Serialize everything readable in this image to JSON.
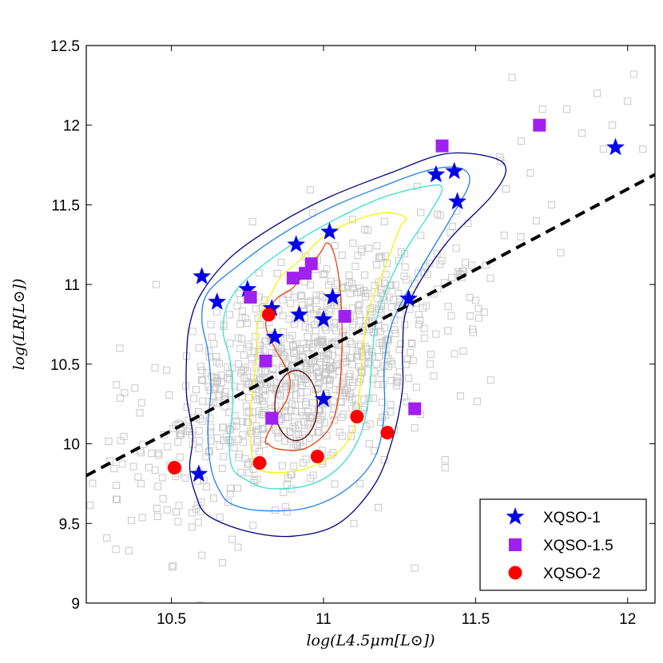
{
  "chart_data": {
    "type": "scatter",
    "title": "",
    "xlabel": "log(L4.5μm[L⊙])",
    "ylabel": "log(LR[L⊙])",
    "xlim": [
      10.22,
      12.09
    ],
    "ylim": [
      9.0,
      12.5
    ],
    "x_ticks": [
      10.5,
      11,
      11.5,
      12
    ],
    "x_tick_labels": [
      "10.5",
      "11",
      "11.5",
      "12"
    ],
    "y_ticks": [
      9,
      9.5,
      10,
      10.5,
      11,
      11.5,
      12,
      12.5
    ],
    "y_tick_labels": [
      "9",
      "9.5",
      "10",
      "10.5",
      "11",
      "11.5",
      "12",
      "12.5"
    ],
    "grid": false,
    "legend_position": "bottom-right",
    "background_sample": {
      "name": "comparison sample",
      "marker": "open-square",
      "color": "#c8c8c8",
      "count": 900,
      "center": [
        10.92,
        10.45
      ],
      "spread": [
        0.2,
        0.42
      ],
      "outliers_x": [
        10.36,
        10.38,
        10.55,
        11.6,
        11.62,
        11.65,
        11.68,
        11.72,
        11.75,
        11.8,
        11.85,
        11.9,
        11.92,
        11.95,
        12.0,
        12.02,
        12.05,
        11.78,
        11.7,
        11.58,
        11.55,
        11.5,
        11.45,
        11.4,
        11.35,
        11.3,
        11.25,
        11.2,
        11.15,
        11.1,
        11.3,
        11.4,
        11.22,
        11.18,
        11.12,
        10.33,
        10.45,
        10.4,
        10.6,
        10.7
      ],
      "outliers_y": [
        9.33,
        10.35,
        10.55,
        11.6,
        12.3,
        11.9,
        11.7,
        12.1,
        11.5,
        12.1,
        11.95,
        12.2,
        11.85,
        12.0,
        12.15,
        12.32,
        11.85,
        11.2,
        11.4,
        11.8,
        10.4,
        10.9,
        10.3,
        9.85,
        10.5,
        10.1,
        10.45,
        9.9,
        10.0,
        9.5,
        9.22,
        9.9,
        10.2,
        9.6,
        9.75,
        10.6,
        11.0,
        9.75,
        9.3,
        9.4
      ]
    },
    "contours": [
      {
        "color": "#5c0000",
        "level": 1,
        "center": [
          10.91,
          10.24
        ],
        "rx": 0.07,
        "ry": 0.22,
        "tilt": 0.0
      },
      {
        "color": "#e8400c",
        "level": 2,
        "x": [
          10.82,
          10.88,
          10.95,
          11.02,
          11.05,
          11.06,
          11.06,
          11.05,
          11.03,
          11.01,
          10.99,
          10.95,
          10.9,
          10.84,
          10.81,
          10.84,
          10.87,
          10.89,
          10.88,
          10.84,
          10.81
        ],
        "y": [
          10.0,
          9.96,
          9.98,
          10.1,
          10.3,
          10.55,
          10.8,
          11.05,
          11.22,
          11.26,
          11.2,
          11.1,
          10.98,
          10.9,
          10.75,
          10.6,
          10.5,
          10.4,
          10.28,
          10.15,
          10.0
        ]
      },
      {
        "color": "#f5f500",
        "level": 3,
        "x": [
          10.78,
          10.85,
          10.95,
          11.05,
          11.1,
          11.12,
          11.13,
          11.15,
          11.2,
          11.25,
          11.27,
          11.2,
          11.1,
          11.0,
          10.92,
          10.86,
          10.83,
          10.8,
          10.78,
          10.78,
          10.77,
          10.76,
          10.76,
          10.78
        ],
        "y": [
          9.85,
          9.82,
          9.85,
          9.95,
          10.1,
          10.35,
          10.6,
          10.85,
          11.1,
          11.35,
          11.42,
          11.45,
          11.4,
          11.3,
          11.15,
          11.05,
          10.95,
          10.85,
          10.72,
          10.55,
          10.38,
          10.2,
          10.0,
          9.85
        ]
      },
      {
        "color": "#38e0d0",
        "level": 4,
        "x": [
          10.74,
          10.82,
          10.95,
          11.05,
          11.12,
          11.15,
          11.16,
          11.18,
          11.25,
          11.35,
          11.39,
          11.35,
          11.2,
          11.05,
          10.92,
          10.8,
          10.72,
          10.68,
          10.67,
          10.69,
          10.7,
          10.7,
          10.69,
          10.7,
          10.74
        ],
        "y": [
          9.78,
          9.72,
          9.74,
          9.85,
          10.05,
          10.3,
          10.55,
          10.82,
          11.15,
          11.45,
          11.6,
          11.62,
          11.55,
          11.42,
          11.28,
          11.12,
          10.98,
          10.85,
          10.7,
          10.55,
          10.4,
          10.2,
          10.0,
          9.85,
          9.78
        ]
      },
      {
        "color": "#2080e8",
        "level": 5,
        "x": [
          10.7,
          10.8,
          10.95,
          11.08,
          11.17,
          11.2,
          11.2,
          11.23,
          11.32,
          11.42,
          11.48,
          11.45,
          11.35,
          11.2,
          11.02,
          10.85,
          10.72,
          10.62,
          10.6,
          10.62,
          10.63,
          10.62,
          10.63,
          10.66,
          10.7
        ],
        "y": [
          9.62,
          9.58,
          9.6,
          9.72,
          9.92,
          10.2,
          10.5,
          10.78,
          11.1,
          11.42,
          11.64,
          11.73,
          11.72,
          11.62,
          11.48,
          11.3,
          11.12,
          10.95,
          10.78,
          10.58,
          10.35,
          10.1,
          9.85,
          9.7,
          9.62
        ]
      },
      {
        "color": "#00007e",
        "level": 6,
        "x": [
          10.62,
          10.75,
          10.9,
          11.05,
          11.17,
          11.23,
          11.26,
          11.26,
          11.28,
          11.4,
          11.55,
          11.6,
          11.55,
          11.4,
          11.22,
          11.02,
          10.85,
          10.7,
          10.6,
          10.56,
          10.55,
          10.55,
          10.57,
          10.56,
          10.58,
          10.62
        ],
        "y": [
          9.55,
          9.45,
          9.42,
          9.5,
          9.75,
          10.05,
          10.35,
          10.6,
          10.88,
          11.25,
          11.55,
          11.72,
          11.8,
          11.82,
          11.7,
          11.55,
          11.38,
          11.18,
          10.95,
          10.75,
          10.55,
          10.3,
          10.05,
          9.85,
          9.68,
          9.55
        ]
      }
    ],
    "trend_line": {
      "name": "dashed relation",
      "x": [
        10.22,
        12.09
      ],
      "y": [
        9.8,
        11.69
      ],
      "color": "#000000",
      "style": "dashed"
    },
    "series": [
      {
        "name": "XQSO-1",
        "marker": "star",
        "color": "#0000e6",
        "x": [
          10.59,
          10.6,
          10.65,
          10.75,
          10.83,
          10.84,
          10.91,
          10.92,
          11.0,
          11.0,
          11.02,
          11.03,
          11.28,
          11.37,
          11.43,
          11.44,
          11.96
        ],
        "y": [
          9.81,
          11.05,
          10.89,
          10.97,
          10.85,
          10.67,
          11.25,
          10.81,
          10.78,
          10.28,
          11.33,
          10.92,
          10.91,
          11.69,
          11.71,
          11.52,
          11.86
        ]
      },
      {
        "name": "XQSO-1.5",
        "marker": "square",
        "color": "#a020f0",
        "x": [
          10.76,
          10.81,
          10.83,
          10.9,
          10.94,
          10.96,
          11.07,
          11.3,
          11.39,
          11.71
        ],
        "y": [
          10.92,
          10.52,
          10.16,
          11.04,
          11.07,
          11.13,
          10.8,
          10.22,
          11.87,
          12.0
        ]
      },
      {
        "name": "XQSO-2",
        "marker": "circle",
        "color": "#ff0000",
        "x": [
          10.51,
          10.79,
          10.82,
          10.98,
          11.11,
          11.21
        ],
        "y": [
          9.85,
          9.88,
          10.81,
          9.92,
          10.17,
          10.07
        ]
      }
    ]
  }
}
